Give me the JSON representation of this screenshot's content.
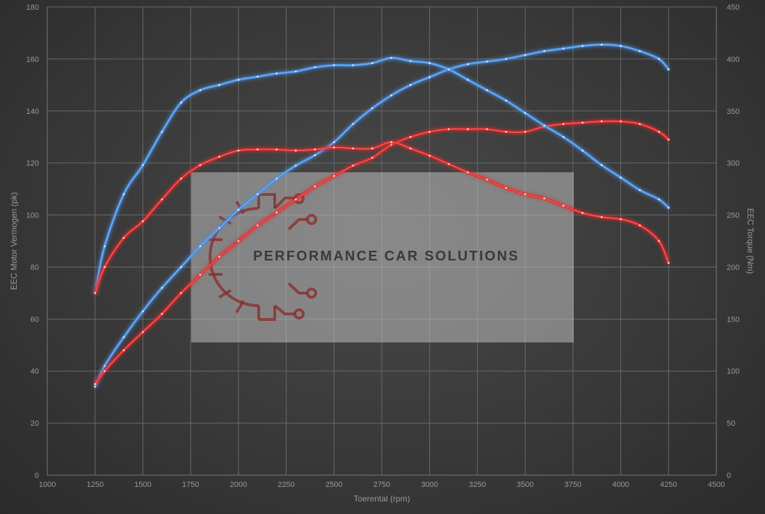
{
  "chart_data": {
    "type": "line",
    "xlabel": "Toerental (rpm)",
    "ylabel_left": "EEC Motor Vermogen (pk)",
    "ylabel_right": "EEC Torque (Nm)",
    "xlim": [
      1000,
      4500
    ],
    "ylim_left": [
      0,
      180
    ],
    "ylim_right": [
      0,
      450
    ],
    "x_ticks": [
      "1000",
      "1250",
      "1500",
      "1750",
      "2000",
      "2250",
      "2500",
      "2750",
      "3000",
      "3250",
      "3500",
      "3750",
      "4000",
      "4250",
      "4500"
    ],
    "y_left_ticks": [
      "0",
      "20",
      "40",
      "60",
      "80",
      "100",
      "120",
      "140",
      "160",
      "180"
    ],
    "y_right_ticks": [
      "0",
      "50",
      "100",
      "150",
      "200",
      "250",
      "300",
      "350",
      "400",
      "450"
    ],
    "grid": true,
    "series": [
      {
        "axis": "left",
        "color": "#4a90e2",
        "points": [
          [
            1250,
            34
          ],
          [
            1300,
            42
          ],
          [
            1400,
            53
          ],
          [
            1500,
            63
          ],
          [
            1600,
            72
          ],
          [
            1700,
            80
          ],
          [
            1800,
            88
          ],
          [
            1900,
            95
          ],
          [
            2000,
            102
          ],
          [
            2100,
            108
          ],
          [
            2200,
            114
          ],
          [
            2300,
            119
          ],
          [
            2400,
            123
          ],
          [
            2500,
            128
          ],
          [
            2600,
            135
          ],
          [
            2700,
            141
          ],
          [
            2800,
            146
          ],
          [
            2900,
            150
          ],
          [
            3000,
            153
          ],
          [
            3100,
            156
          ],
          [
            3200,
            158
          ],
          [
            3300,
            159
          ],
          [
            3400,
            160
          ],
          [
            3500,
            161.5
          ],
          [
            3600,
            163
          ],
          [
            3700,
            164
          ],
          [
            3800,
            165
          ],
          [
            3900,
            165.5
          ],
          [
            4000,
            165
          ],
          [
            4100,
            163
          ],
          [
            4200,
            160
          ],
          [
            4250,
            156
          ]
        ]
      },
      {
        "axis": "left",
        "color": "#e02b2b",
        "points": [
          [
            1250,
            35
          ],
          [
            1300,
            40
          ],
          [
            1400,
            48
          ],
          [
            1500,
            55
          ],
          [
            1600,
            62
          ],
          [
            1700,
            70
          ],
          [
            1800,
            77
          ],
          [
            1900,
            84
          ],
          [
            2000,
            90
          ],
          [
            2100,
            96
          ],
          [
            2200,
            101
          ],
          [
            2300,
            106
          ],
          [
            2400,
            111
          ],
          [
            2500,
            115
          ],
          [
            2600,
            119
          ],
          [
            2700,
            122
          ],
          [
            2800,
            127
          ],
          [
            2900,
            130
          ],
          [
            3000,
            132
          ],
          [
            3100,
            133
          ],
          [
            3200,
            133
          ],
          [
            3300,
            133
          ],
          [
            3400,
            132
          ],
          [
            3500,
            132
          ],
          [
            3600,
            134
          ],
          [
            3700,
            135
          ],
          [
            3800,
            135.5
          ],
          [
            3900,
            136
          ],
          [
            4000,
            136
          ],
          [
            4100,
            135
          ],
          [
            4200,
            132
          ],
          [
            4250,
            129
          ]
        ]
      },
      {
        "axis": "right",
        "color": "#4a90e2",
        "points": [
          [
            1250,
            175
          ],
          [
            1300,
            220
          ],
          [
            1400,
            270
          ],
          [
            1500,
            298
          ],
          [
            1600,
            330
          ],
          [
            1700,
            358
          ],
          [
            1800,
            370
          ],
          [
            1900,
            375
          ],
          [
            2000,
            380
          ],
          [
            2100,
            383
          ],
          [
            2200,
            386
          ],
          [
            2300,
            388
          ],
          [
            2400,
            392
          ],
          [
            2500,
            394
          ],
          [
            2600,
            394
          ],
          [
            2700,
            396
          ],
          [
            2800,
            401
          ],
          [
            2900,
            398
          ],
          [
            3000,
            396
          ],
          [
            3100,
            390
          ],
          [
            3200,
            380
          ],
          [
            3300,
            370
          ],
          [
            3400,
            360
          ],
          [
            3500,
            348
          ],
          [
            3600,
            336
          ],
          [
            3700,
            325
          ],
          [
            3800,
            312
          ],
          [
            3900,
            298
          ],
          [
            4000,
            286
          ],
          [
            4100,
            274
          ],
          [
            4200,
            265
          ],
          [
            4250,
            257
          ]
        ]
      },
      {
        "axis": "right",
        "color": "#e02b2b",
        "points": [
          [
            1250,
            175
          ],
          [
            1300,
            200
          ],
          [
            1400,
            228
          ],
          [
            1500,
            244
          ],
          [
            1600,
            265
          ],
          [
            1700,
            285
          ],
          [
            1800,
            298
          ],
          [
            1900,
            306
          ],
          [
            2000,
            312
          ],
          [
            2100,
            313
          ],
          [
            2200,
            313
          ],
          [
            2300,
            312
          ],
          [
            2400,
            313
          ],
          [
            2500,
            315
          ],
          [
            2600,
            314
          ],
          [
            2700,
            314
          ],
          [
            2800,
            320
          ],
          [
            2900,
            314
          ],
          [
            3000,
            307
          ],
          [
            3100,
            299
          ],
          [
            3200,
            291
          ],
          [
            3300,
            284
          ],
          [
            3400,
            276
          ],
          [
            3500,
            270
          ],
          [
            3600,
            266
          ],
          [
            3700,
            259
          ],
          [
            3800,
            252
          ],
          [
            3900,
            248
          ],
          [
            4000,
            246
          ],
          [
            4100,
            240
          ],
          [
            4200,
            225
          ],
          [
            4250,
            204
          ]
        ]
      }
    ],
    "watermark": {
      "text": "PERFORMANCE CAR SOLUTIONS",
      "icon": "gear-circuit-logo"
    }
  }
}
